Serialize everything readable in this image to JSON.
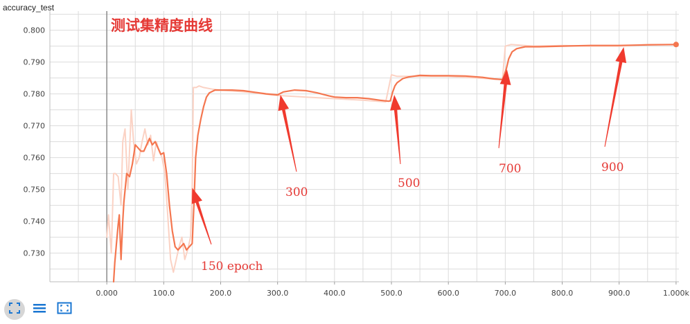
{
  "panel": {
    "title": "accuracy_test"
  },
  "colors": {
    "line": "#f4764f",
    "smooth_light": "#fbd2c4",
    "arrow": "#f03a2e",
    "annotation": "#e53935",
    "grid": "#dcdcdc",
    "toolbar_icon": "#1976d2"
  },
  "icons": {
    "fit": "fit-domain-icon",
    "log": "log-scale-icon",
    "expand": "expand-icon"
  },
  "chart_data": {
    "type": "line",
    "title": "测试集精度曲线",
    "xlabel": "",
    "ylabel": "",
    "xlim": [
      -100,
      1005
    ],
    "ylim": [
      0.721,
      0.806
    ],
    "x_tick_labels": [
      "0.000",
      "100.0",
      "200.0",
      "300.0",
      "400.0",
      "500.0",
      "600.0",
      "700.0",
      "800.0",
      "900.0",
      "1.000k"
    ],
    "y_tick_labels": [
      "0.730",
      "0.740",
      "0.750",
      "0.760",
      "0.770",
      "0.780",
      "0.790",
      "0.800"
    ],
    "grid": true,
    "series": [
      {
        "role": "raw",
        "x": [
          0,
          3,
          8,
          12,
          15,
          20,
          25,
          28,
          32,
          37,
          43,
          47,
          52,
          57,
          62,
          67,
          72,
          77,
          82,
          87,
          92,
          97,
          102,
          107,
          112,
          117,
          122,
          127,
          132,
          137,
          142,
          147,
          150,
          152,
          157,
          162,
          170,
          185,
          200,
          250,
          300,
          350,
          400,
          450,
          490,
          500,
          510,
          550,
          600,
          650,
          695,
          700,
          710,
          750,
          800,
          850,
          900,
          950,
          1000
        ],
        "y": [
          0.735,
          0.742,
          0.73,
          0.755,
          0.755,
          0.754,
          0.745,
          0.765,
          0.769,
          0.75,
          0.775,
          0.765,
          0.758,
          0.76,
          0.765,
          0.769,
          0.764,
          0.767,
          0.759,
          0.765,
          0.762,
          0.76,
          0.755,
          0.742,
          0.728,
          0.724,
          0.728,
          0.732,
          0.735,
          0.728,
          0.731,
          0.735,
          0.75,
          0.782,
          0.782,
          0.7825,
          0.782,
          0.7815,
          0.7812,
          0.7805,
          0.7795,
          0.779,
          0.7785,
          0.778,
          0.7775,
          0.786,
          0.7855,
          0.7855,
          0.7855,
          0.785,
          0.7845,
          0.795,
          0.7955,
          0.795,
          0.7952,
          0.795,
          0.795,
          0.7955,
          0.7955
        ]
      },
      {
        "role": "smoothed",
        "x": [
          12,
          14,
          17,
          20,
          22,
          25,
          28,
          30,
          35,
          40,
          45,
          50,
          55,
          60,
          65,
          70,
          75,
          80,
          85,
          90,
          95,
          100,
          105,
          110,
          115,
          120,
          125,
          130,
          135,
          140,
          145,
          150,
          153,
          156,
          160,
          165,
          170,
          175,
          180,
          190,
          200,
          220,
          240,
          260,
          280,
          300,
          310,
          330,
          350,
          370,
          390,
          400,
          420,
          440,
          460,
          480,
          495,
          498,
          502,
          506,
          510,
          520,
          530,
          550,
          570,
          600,
          630,
          660,
          680,
          695,
          698,
          702,
          706,
          712,
          720,
          735,
          760,
          800,
          850,
          900,
          950,
          1000
        ],
        "y": [
          0.721,
          0.727,
          0.733,
          0.739,
          0.742,
          0.728,
          0.74,
          0.746,
          0.755,
          0.754,
          0.758,
          0.764,
          0.763,
          0.762,
          0.762,
          0.764,
          0.766,
          0.764,
          0.765,
          0.763,
          0.761,
          0.7615,
          0.755,
          0.745,
          0.737,
          0.732,
          0.731,
          0.732,
          0.733,
          0.731,
          0.732,
          0.733,
          0.745,
          0.76,
          0.767,
          0.772,
          0.776,
          0.779,
          0.7803,
          0.7812,
          0.7812,
          0.7812,
          0.781,
          0.7805,
          0.78,
          0.7797,
          0.7806,
          0.7812,
          0.781,
          0.7803,
          0.7794,
          0.779,
          0.7788,
          0.7788,
          0.7785,
          0.778,
          0.7777,
          0.7778,
          0.7805,
          0.7825,
          0.7835,
          0.7848,
          0.7853,
          0.7858,
          0.7857,
          0.7857,
          0.7856,
          0.7852,
          0.7847,
          0.7845,
          0.7858,
          0.788,
          0.791,
          0.7932,
          0.7942,
          0.7948,
          0.7948,
          0.795,
          0.7952,
          0.7952,
          0.7954,
          0.7955
        ]
      }
    ],
    "vertical_marker_x": 0,
    "annotations": [
      {
        "label": "150 epoch",
        "target_x": 150,
        "target_y": 0.7505
      },
      {
        "label": "300",
        "target_x": 305,
        "target_y": 0.7797
      },
      {
        "label": "500",
        "target_x": 505,
        "target_y": 0.7797
      },
      {
        "label": "700",
        "target_x": 703,
        "target_y": 0.7877
      },
      {
        "label": "900",
        "target_x": 908,
        "target_y": 0.7947
      }
    ]
  }
}
